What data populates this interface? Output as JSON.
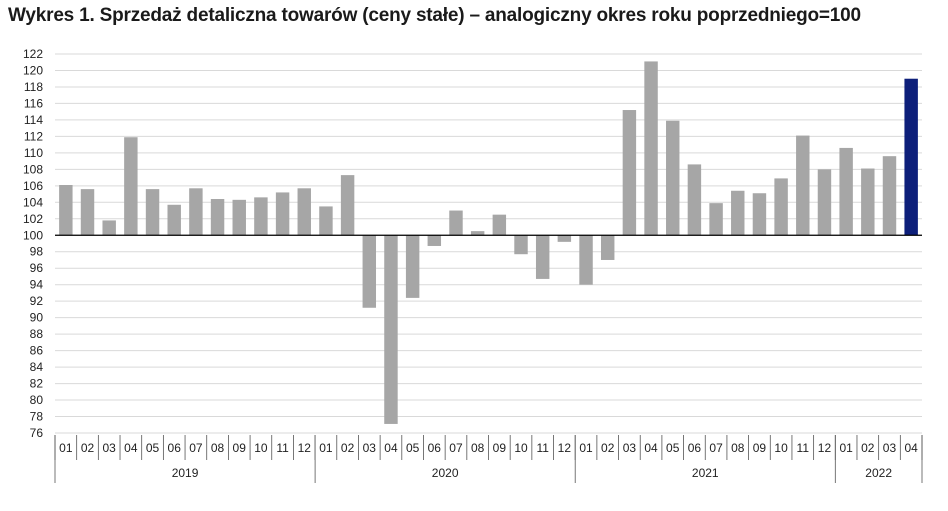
{
  "title": "Wykres 1. Sprzedaż detaliczna towarów (ceny stałe) – analogiczny okres roku poprzedniego=100",
  "chart_data": {
    "type": "bar",
    "ylim": [
      76,
      122
    ],
    "ytick_step": 2,
    "baseline": 100,
    "grid": true,
    "legend": "none",
    "colors": {
      "bar": "#a6a6a6",
      "highlight": "#0d1f7a",
      "grid": "#d9d9d9",
      "axis": "#000000"
    },
    "years": [
      {
        "label": "2019",
        "months": [
          "01",
          "02",
          "03",
          "04",
          "05",
          "06",
          "07",
          "08",
          "09",
          "10",
          "11",
          "12"
        ]
      },
      {
        "label": "2020",
        "months": [
          "01",
          "02",
          "03",
          "04",
          "05",
          "06",
          "07",
          "08",
          "09",
          "10",
          "11",
          "12"
        ]
      },
      {
        "label": "2021",
        "months": [
          "01",
          "02",
          "03",
          "04",
          "05",
          "06",
          "07",
          "08",
          "09",
          "10",
          "11",
          "12"
        ]
      },
      {
        "label": "2022",
        "months": [
          "01",
          "02",
          "03",
          "04"
        ]
      }
    ],
    "values": [
      106.1,
      105.6,
      101.8,
      111.9,
      105.6,
      103.7,
      105.7,
      104.4,
      104.3,
      104.6,
      105.2,
      105.7,
      103.5,
      107.3,
      91.2,
      77.1,
      92.4,
      98.7,
      103.0,
      100.5,
      102.5,
      97.7,
      94.7,
      99.2,
      94.0,
      97.0,
      115.2,
      121.1,
      113.9,
      108.6,
      103.9,
      105.4,
      105.1,
      106.9,
      112.1,
      108.0,
      110.6,
      108.1,
      109.6,
      119.0
    ],
    "highlight_index": 39
  }
}
